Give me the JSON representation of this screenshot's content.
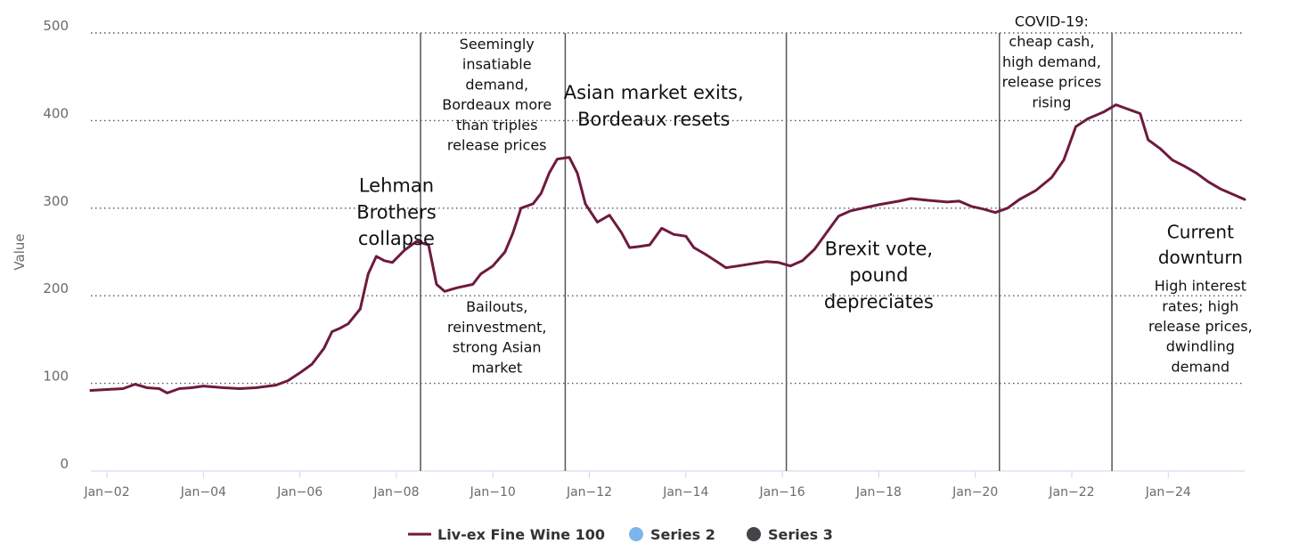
{
  "chart_data": {
    "type": "line",
    "title": "",
    "xlabel": "",
    "ylabel": "Value",
    "ylim": [
      0,
      500
    ],
    "y_ticks": [
      0,
      100,
      200,
      300,
      400,
      500
    ],
    "x_ticks": [
      {
        "label": "Jan−02",
        "date": "2002-01"
      },
      {
        "label": "Jan−04",
        "date": "2004-01"
      },
      {
        "label": "Jan−06",
        "date": "2006-01"
      },
      {
        "label": "Jan−08",
        "date": "2008-01"
      },
      {
        "label": "Jan−10",
        "date": "2010-01"
      },
      {
        "label": "Jan−12",
        "date": "2012-01"
      },
      {
        "label": "Jan−14",
        "date": "2014-01"
      },
      {
        "label": "Jan−16",
        "date": "2016-01"
      },
      {
        "label": "Jan−18",
        "date": "2018-01"
      },
      {
        "label": "Jan−20",
        "date": "2020-01"
      },
      {
        "label": "Jan−22",
        "date": "2022-01"
      },
      {
        "label": "Jan−24",
        "date": "2024-01"
      }
    ],
    "xlim": [
      "2001-09",
      "2025-08"
    ],
    "grid": "horizontal dotted",
    "legend_position": "bottom-center",
    "colors": {
      "series1": "#6e1a3f",
      "series2": "#7cb5ec",
      "series3": "#434348",
      "marker_line": "#555555",
      "grid": "#555555",
      "axis": "#ccd6eb"
    },
    "series": [
      {
        "name": "Liv-ex Fine Wine 100",
        "points": [
          [
            "2001-09",
            92
          ],
          [
            "2002-01",
            93
          ],
          [
            "2002-05",
            94
          ],
          [
            "2002-08",
            99
          ],
          [
            "2002-11",
            95
          ],
          [
            "2003-02",
            94
          ],
          [
            "2003-04",
            89
          ],
          [
            "2003-07",
            94
          ],
          [
            "2003-10",
            95
          ],
          [
            "2004-01",
            97
          ],
          [
            "2004-06",
            95
          ],
          [
            "2004-10",
            94
          ],
          [
            "2005-02",
            95
          ],
          [
            "2005-07",
            98
          ],
          [
            "2005-10",
            103
          ],
          [
            "2006-01",
            112
          ],
          [
            "2006-04",
            122
          ],
          [
            "2006-07",
            140
          ],
          [
            "2006-09",
            159
          ],
          [
            "2006-11",
            163
          ],
          [
            "2007-01",
            168
          ],
          [
            "2007-04",
            185
          ],
          [
            "2007-06",
            225
          ],
          [
            "2007-08",
            245
          ],
          [
            "2007-10",
            240
          ],
          [
            "2007-12",
            238
          ],
          [
            "2008-03",
            252
          ],
          [
            "2008-06",
            262
          ],
          [
            "2008-09",
            258
          ],
          [
            "2008-11",
            213
          ],
          [
            "2009-01",
            205
          ],
          [
            "2009-04",
            209
          ],
          [
            "2009-08",
            213
          ],
          [
            "2009-10",
            225
          ],
          [
            "2010-01",
            234
          ],
          [
            "2010-04",
            250
          ],
          [
            "2010-06",
            272
          ],
          [
            "2010-08",
            300
          ],
          [
            "2010-11",
            305
          ],
          [
            "2011-01",
            317
          ],
          [
            "2011-03",
            340
          ],
          [
            "2011-05",
            356
          ],
          [
            "2011-08",
            358
          ],
          [
            "2011-10",
            340
          ],
          [
            "2011-12",
            305
          ],
          [
            "2012-03",
            284
          ],
          [
            "2012-06",
            292
          ],
          [
            "2012-09",
            272
          ],
          [
            "2012-11",
            255
          ],
          [
            "2013-01",
            256
          ],
          [
            "2013-04",
            258
          ],
          [
            "2013-07",
            277
          ],
          [
            "2013-10",
            270
          ],
          [
            "2014-01",
            268
          ],
          [
            "2014-03",
            255
          ],
          [
            "2014-06",
            247
          ],
          [
            "2014-09",
            238
          ],
          [
            "2014-11",
            232
          ],
          [
            "2015-02",
            234
          ],
          [
            "2015-06",
            237
          ],
          [
            "2015-09",
            239
          ],
          [
            "2015-12",
            238
          ],
          [
            "2016-03",
            234
          ],
          [
            "2016-06",
            240
          ],
          [
            "2016-09",
            253
          ],
          [
            "2016-12",
            272
          ],
          [
            "2017-03",
            291
          ],
          [
            "2017-06",
            297
          ],
          [
            "2017-09",
            300
          ],
          [
            "2018-01",
            304
          ],
          [
            "2018-06",
            308
          ],
          [
            "2018-09",
            311
          ],
          [
            "2019-01",
            309
          ],
          [
            "2019-06",
            307
          ],
          [
            "2019-09",
            308
          ],
          [
            "2019-12",
            302
          ],
          [
            "2020-03",
            299
          ],
          [
            "2020-06",
            295
          ],
          [
            "2020-09",
            300
          ],
          [
            "2020-12",
            310
          ],
          [
            "2021-04",
            320
          ],
          [
            "2021-08",
            335
          ],
          [
            "2021-11",
            355
          ],
          [
            "2022-02",
            393
          ],
          [
            "2022-05",
            402
          ],
          [
            "2022-09",
            410
          ],
          [
            "2022-12",
            418
          ],
          [
            "2023-03",
            413
          ],
          [
            "2023-06",
            408
          ],
          [
            "2023-08",
            378
          ],
          [
            "2023-11",
            368
          ],
          [
            "2024-02",
            355
          ],
          [
            "2024-05",
            348
          ],
          [
            "2024-08",
            340
          ],
          [
            "2024-11",
            330
          ],
          [
            "2025-02",
            322
          ],
          [
            "2025-05",
            316
          ],
          [
            "2025-08",
            310
          ]
        ]
      },
      {
        "name": "Series 2",
        "points": []
      },
      {
        "name": "Series 3",
        "points": []
      }
    ],
    "event_lines": [
      {
        "date": "2008-07"
      },
      {
        "date": "2011-07"
      },
      {
        "date": "2016-02"
      },
      {
        "date": "2020-07"
      },
      {
        "date": "2022-11"
      }
    ],
    "annotations": [
      {
        "lines": [
          "Lehman",
          "Brothers",
          "collapse"
        ],
        "date": "2008-01",
        "value": 340,
        "size": 21
      },
      {
        "lines": [
          "Seemingly",
          "insatiable",
          "demand,",
          "Bordeaux more",
          "than triples",
          "release prices"
        ],
        "date": "2010-02",
        "value": 498,
        "size": 16
      },
      {
        "lines": [
          "Bailouts,",
          "reinvestment,",
          "strong Asian",
          "market"
        ],
        "date": "2010-02",
        "value": 198,
        "size": 16
      },
      {
        "lines": [
          "Asian market exits,",
          "Bordeaux  resets"
        ],
        "date": "2013-05",
        "value": 446,
        "size": 21
      },
      {
        "lines": [
          "Brexit vote,",
          "pound",
          "depreciates"
        ],
        "date": "2018-00",
        "value": 268,
        "size": 21
      },
      {
        "lines": [
          "COVID-19:",
          "cheap cash,",
          "high demand,",
          "release prices",
          "rising"
        ],
        "date": "2021-08",
        "value": 524,
        "size": 16
      },
      {
        "lines": [
          "Current",
          "downturn"
        ],
        "date": "2024-09",
        "value": 286,
        "size": 20
      },
      {
        "lines": [
          "High interest",
          "rates; high",
          "release prices,",
          "dwindling",
          "demand"
        ],
        "date": "2024-09",
        "value": 222,
        "size": 16
      }
    ]
  }
}
